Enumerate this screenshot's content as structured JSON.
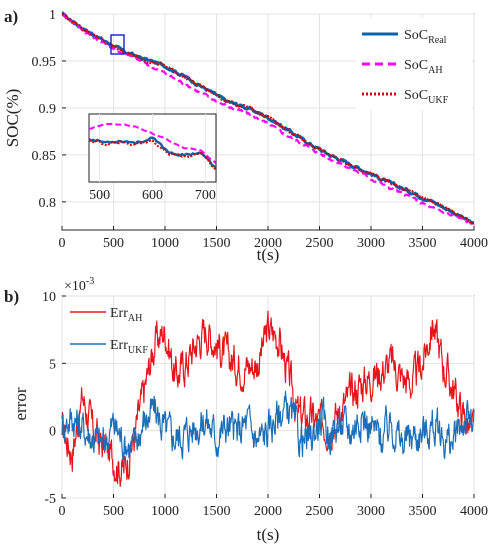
{
  "chart_data": [
    {
      "panel_label": "a)",
      "type": "line",
      "xlabel": "t(s)",
      "ylabel": "SOC(%)",
      "xlim": [
        0,
        4000
      ],
      "ylim": [
        0.77,
        1.0
      ],
      "xticks": [
        0,
        500,
        1000,
        1500,
        2000,
        2500,
        3000,
        3500,
        4000
      ],
      "yticks": [
        0.8,
        0.85,
        0.9,
        0.95,
        1.0
      ],
      "ytick_labels": [
        "0.8",
        "0.85",
        "0.9",
        "0.95",
        "1"
      ],
      "legend": "top-right",
      "series": [
        {
          "name": "SoC",
          "name_sub": "Real",
          "color": "#0a62a9",
          "style": "solid",
          "x": [
            0,
            200,
            400,
            600,
            800,
            1000,
            1200,
            1400,
            1600,
            1800,
            2000,
            2200,
            2400,
            2600,
            2800,
            3000,
            3200,
            3400,
            3600,
            3800,
            4000
          ],
          "y": [
            1.0,
            0.985,
            0.972,
            0.96,
            0.952,
            0.945,
            0.933,
            0.92,
            0.907,
            0.9,
            0.89,
            0.876,
            0.862,
            0.85,
            0.84,
            0.83,
            0.819,
            0.81,
            0.8,
            0.789,
            0.776
          ]
        },
        {
          "name": "SoC",
          "name_sub": "AH",
          "color": "#ff00ff",
          "style": "dashed",
          "x": [
            0,
            200,
            400,
            600,
            800,
            1000,
            1200,
            1400,
            1600,
            1800,
            2000,
            2200,
            2400,
            2600,
            2800,
            3000,
            3200,
            3400,
            3600,
            3800,
            4000
          ],
          "y": [
            1.0,
            0.983,
            0.969,
            0.958,
            0.948,
            0.937,
            0.925,
            0.913,
            0.902,
            0.894,
            0.883,
            0.87,
            0.858,
            0.846,
            0.836,
            0.825,
            0.814,
            0.804,
            0.793,
            0.785,
            0.776
          ]
        },
        {
          "name": "SoC",
          "name_sub": "UKF",
          "color": "#d40000",
          "style": "dotted",
          "x": [
            0,
            200,
            400,
            600,
            800,
            1000,
            1200,
            1400,
            1600,
            1800,
            2000,
            2200,
            2400,
            2600,
            2800,
            3000,
            3200,
            3400,
            3600,
            3800,
            4000
          ],
          "y": [
            1.0,
            0.985,
            0.971,
            0.96,
            0.951,
            0.945,
            0.932,
            0.92,
            0.907,
            0.9,
            0.89,
            0.876,
            0.862,
            0.85,
            0.84,
            0.83,
            0.819,
            0.81,
            0.8,
            0.789,
            0.776
          ]
        }
      ],
      "inset": {
        "xlim": [
          480,
          720
        ],
        "xticks": [
          500,
          600,
          700
        ],
        "series": [
          {
            "x": [
              480,
              510,
              540,
              570,
              600,
              630,
              660,
              690,
              720
            ],
            "y": [
              0.9615,
              0.9605,
              0.961,
              0.9605,
              0.9615,
              0.958,
              0.957,
              0.958,
              0.9535
            ]
          },
          {
            "x": [
              480,
              510,
              540,
              570,
              600,
              630,
              660,
              690,
              720
            ],
            "y": [
              0.964,
              0.9655,
              0.9652,
              0.9645,
              0.963,
              0.961,
              0.959,
              0.9585,
              0.955
            ]
          },
          {
            "x": [
              480,
              510,
              540,
              570,
              600,
              630,
              660,
              690,
              720
            ],
            "y": [
              0.9612,
              0.96,
              0.9605,
              0.96,
              0.961,
              0.9575,
              0.9565,
              0.9578,
              0.9532
            ]
          }
        ]
      }
    },
    {
      "panel_label": "b)",
      "type": "line",
      "xlabel": "t(s)",
      "ylabel": "error",
      "xlim": [
        0,
        4000
      ],
      "ylim": [
        -5,
        10
      ],
      "xticks": [
        0,
        500,
        1000,
        1500,
        2000,
        2500,
        3000,
        3500,
        4000
      ],
      "yticks": [
        -5,
        0,
        5,
        10
      ],
      "y_exponent": "×10",
      "y_exponent_power": "-3",
      "legend": "top-left",
      "series": [
        {
          "name": "Err",
          "name_sub": "AH",
          "color": "#e8141b",
          "x": [
            0,
            100,
            200,
            300,
            400,
            500,
            600,
            700,
            800,
            900,
            1000,
            1100,
            1200,
            1300,
            1400,
            1500,
            1600,
            1700,
            1800,
            1900,
            2000,
            2100,
            2200,
            2300,
            2400,
            2500,
            2600,
            2700,
            2800,
            2900,
            3000,
            3100,
            3200,
            3300,
            3400,
            3500,
            3600,
            3700,
            3800,
            3900,
            4000
          ],
          "y": [
            0,
            -1.5,
            2.5,
            0,
            -1.2,
            -2,
            -3,
            -0.5,
            3,
            6.5,
            7.5,
            4,
            5,
            6.5,
            7.5,
            6.5,
            5.5,
            5,
            4.8,
            5,
            7.5,
            7,
            4,
            1,
            1,
            0.5,
            0.5,
            1.5,
            2.5,
            3.5,
            4,
            4.5,
            5,
            4,
            3.5,
            5,
            8,
            5,
            3,
            1,
            0
          ]
        },
        {
          "name": "Err",
          "name_sub": "UKF",
          "color": "#1a6fb8",
          "x": [
            0,
            100,
            200,
            300,
            400,
            500,
            600,
            700,
            800,
            900,
            1000,
            1100,
            1200,
            1300,
            1400,
            1500,
            1600,
            1700,
            1800,
            1900,
            2000,
            2100,
            2200,
            2300,
            2400,
            2500,
            2600,
            2700,
            2800,
            2900,
            3000,
            3100,
            3200,
            3300,
            3400,
            3500,
            3600,
            3700,
            3800,
            3900,
            4000
          ],
          "y": [
            0.5,
            1,
            0.2,
            -0.5,
            -1,
            0.5,
            -0.8,
            -1.2,
            0.8,
            1.5,
            0,
            -0.5,
            -0.2,
            0.4,
            0.8,
            -0.5,
            0.4,
            -0.2,
            0.6,
            -0.8,
            0,
            1.2,
            1.6,
            -0.5,
            -1,
            0.8,
            -0.2,
            0.5,
            0,
            1.2,
            0.2,
            -0.5,
            0.6,
            -1,
            -0.4,
            -0.2,
            0.4,
            -0.5,
            -1,
            0.8,
            0.5
          ]
        }
      ]
    }
  ]
}
